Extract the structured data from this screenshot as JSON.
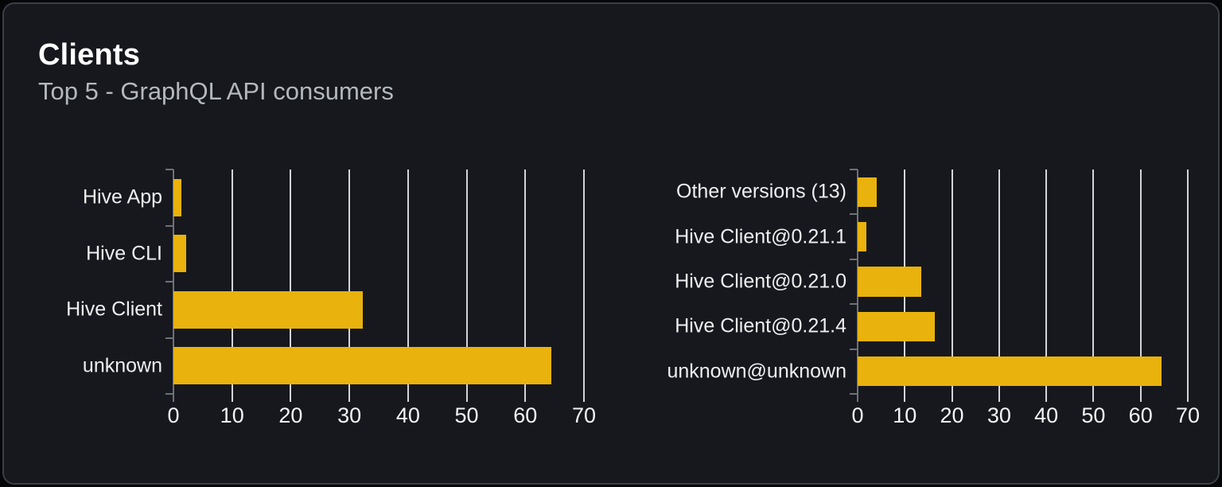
{
  "panel": {
    "title": "Clients",
    "subtitle": "Top 5 - GraphQL API consumers"
  },
  "colors": {
    "page_bg": "#050608",
    "card_bg": "#16181d",
    "card_border": "#3a3e45",
    "bar": "#e9b20d",
    "gridline": "#d2d5d9",
    "axis": "#6e7178",
    "title": "#ffffff",
    "subtitle": "#b4b8be",
    "label": "#edeff1",
    "tick_label": "#f3f4f6"
  },
  "chart_data": [
    {
      "type": "bar",
      "name": "clients",
      "orientation": "horizontal",
      "categories": [
        "Hive App",
        "Hive CLI",
        "Hive Client",
        "unknown"
      ],
      "values": [
        1.4,
        2.2,
        32.3,
        64.5
      ],
      "xlim": [
        0,
        70
      ],
      "xticks": [
        0,
        10,
        20,
        30,
        40,
        50,
        60,
        70
      ],
      "grid": "vertical",
      "legend": "none",
      "bar_color": "#e9b20d"
    },
    {
      "type": "bar",
      "name": "client-versions",
      "orientation": "horizontal",
      "categories": [
        "Other versions (13)",
        "Hive Client@0.21.1",
        "Hive Client@0.21.0",
        "Hive Client@0.21.4",
        "unknown@unknown"
      ],
      "values": [
        4.0,
        1.9,
        13.5,
        16.4,
        64.5
      ],
      "xlim": [
        0,
        70
      ],
      "xticks": [
        0,
        10,
        20,
        30,
        40,
        50,
        60,
        70
      ],
      "grid": "vertical",
      "legend": "none",
      "bar_color": "#e9b20d"
    }
  ]
}
